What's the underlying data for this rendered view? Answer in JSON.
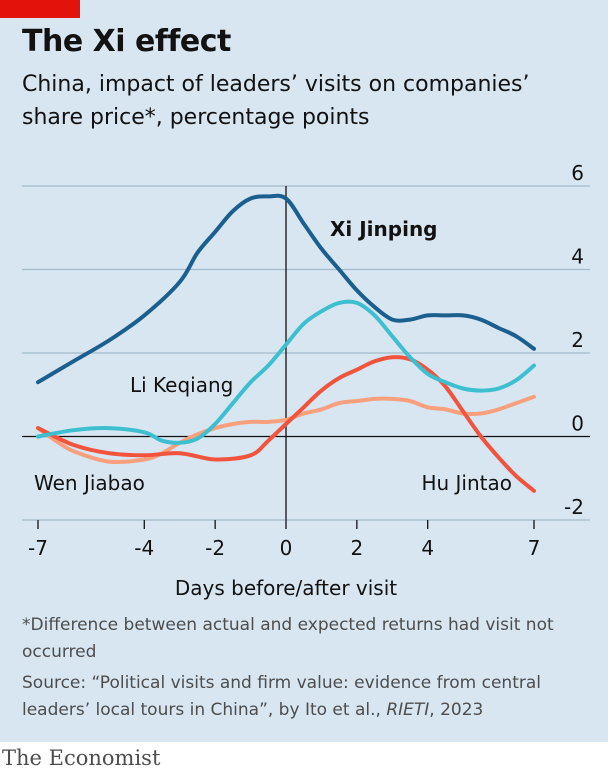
{
  "header": {
    "title": "The Xi effect",
    "subtitle": "China, impact of leaders’ visits on companies’ share price*, percentage points"
  },
  "footer": {
    "footnote": "*Difference between actual and expected returns had visit not occurred",
    "source_prefix": "Source: “Political visits and firm value: evidence from central leaders’ local tours in China”, by Ito et al., ",
    "source_journal": "RIETI",
    "source_suffix": ", 2023",
    "brand": "The Economist"
  },
  "colors": {
    "accent_tag": "#e3120b",
    "background": "#d7e6f1"
  },
  "chart_data": {
    "type": "line",
    "xlabel": "Days before/after visit",
    "ylabel": "",
    "xlim": [
      -7,
      7
    ],
    "ylim": [
      -2,
      6
    ],
    "x_ticks": [
      -7,
      -4,
      -2,
      0,
      2,
      4,
      7
    ],
    "y_ticks": [
      -2,
      0,
      2,
      4,
      6
    ],
    "grid": true,
    "series": [
      {
        "name": "Xi Jinping",
        "color": "#1b5f8f",
        "label_bold": true,
        "x": [
          -7,
          -6,
          -5,
          -4,
          -3,
          -2.5,
          -2,
          -1.5,
          -1,
          -0.5,
          0,
          0.5,
          1,
          1.5,
          2,
          2.5,
          3,
          3.5,
          4,
          4.5,
          5,
          5.5,
          6,
          6.5,
          7
        ],
        "y": [
          1.3,
          1.8,
          2.3,
          2.9,
          3.7,
          4.4,
          4.9,
          5.4,
          5.7,
          5.75,
          5.7,
          5.1,
          4.5,
          4.0,
          3.5,
          3.1,
          2.8,
          2.8,
          2.9,
          2.9,
          2.9,
          2.8,
          2.6,
          2.4,
          2.1
        ]
      },
      {
        "name": "Li Keqiang",
        "color": "#3ebfcf",
        "x": [
          -7,
          -6,
          -5,
          -4,
          -3.5,
          -3,
          -2.5,
          -2,
          -1.5,
          -1,
          -0.5,
          0,
          0.5,
          1,
          1.5,
          2,
          2.5,
          3,
          3.5,
          4,
          4.5,
          5,
          5.5,
          6,
          6.5,
          7
        ],
        "y": [
          0.0,
          0.15,
          0.2,
          0.1,
          -0.1,
          -0.15,
          -0.05,
          0.3,
          0.8,
          1.3,
          1.7,
          2.2,
          2.7,
          3.0,
          3.2,
          3.2,
          2.9,
          2.4,
          1.9,
          1.5,
          1.3,
          1.15,
          1.1,
          1.15,
          1.35,
          1.7
        ]
      },
      {
        "name": "Hu Jintao",
        "color": "#f1533c",
        "x": [
          -7,
          -6,
          -5,
          -4,
          -3,
          -2,
          -1,
          -0.5,
          0,
          0.5,
          1,
          1.5,
          2,
          2.5,
          3,
          3.5,
          4,
          4.5,
          5,
          5.5,
          6,
          6.5,
          7
        ],
        "y": [
          0.2,
          -0.2,
          -0.4,
          -0.45,
          -0.4,
          -0.55,
          -0.45,
          -0.1,
          0.3,
          0.7,
          1.1,
          1.4,
          1.6,
          1.8,
          1.9,
          1.85,
          1.6,
          1.2,
          0.6,
          0.0,
          -0.5,
          -0.95,
          -1.3
        ]
      },
      {
        "name": "Wen Jiabao",
        "color": "#f8a07e",
        "x": [
          -7,
          -6.5,
          -6,
          -5,
          -4,
          -3.5,
          -3,
          -2.5,
          -2,
          -1.5,
          -1,
          -0.5,
          0,
          0.5,
          1,
          1.5,
          2,
          2.5,
          3,
          3.5,
          4,
          4.5,
          5,
          5.5,
          6,
          6.5,
          7
        ],
        "y": [
          0.2,
          -0.1,
          -0.35,
          -0.6,
          -0.55,
          -0.4,
          -0.15,
          0.05,
          0.2,
          0.3,
          0.35,
          0.35,
          0.4,
          0.55,
          0.65,
          0.8,
          0.85,
          0.9,
          0.9,
          0.85,
          0.7,
          0.65,
          0.55,
          0.55,
          0.65,
          0.8,
          0.95
        ]
      }
    ]
  }
}
